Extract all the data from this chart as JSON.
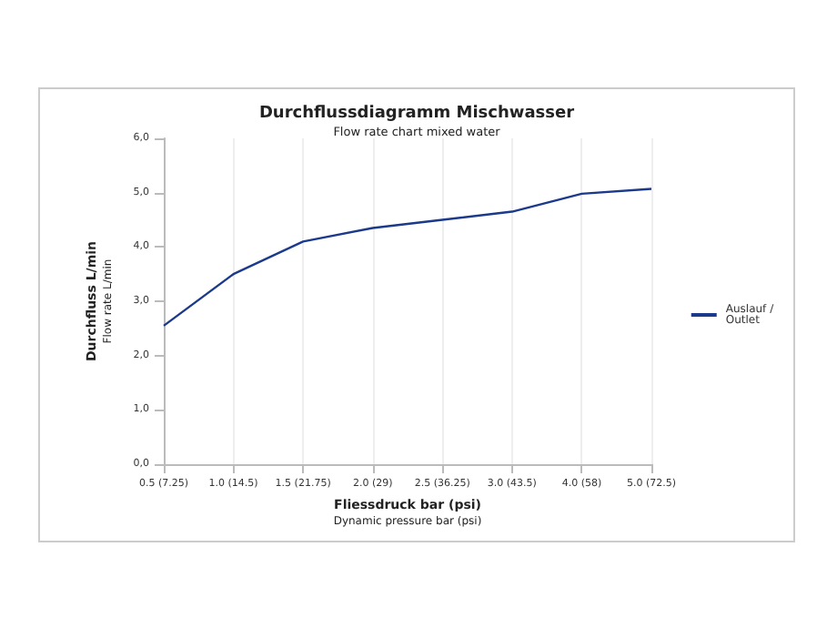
{
  "chart_data": {
    "type": "line",
    "title": "Durchflussdiagramm Mischwasser",
    "subtitle": "Flow rate chart mixed water",
    "xlabel": "Fliessdruck bar (psi)\nDynamic pressure bar (psi)",
    "ylabel": "Durchfluss L/min\nFlow rate L/min",
    "categories": [
      "0.5 (7.25)",
      "1.0 (14.5)",
      "1.5 (21.75)",
      "2.0 (29)",
      "2.5 (36.25)",
      "3.0 (43.5)",
      "4.0 (58)",
      "5.0 (72.5)"
    ],
    "series": [
      {
        "name": "Auslauf / Outlet",
        "color": "#1c3a8c",
        "values": [
          2.55,
          3.5,
          4.1,
          4.35,
          4.5,
          4.65,
          4.98,
          5.07
        ]
      }
    ],
    "ylim": [
      0,
      6
    ],
    "yticks": [
      {
        "value": 0,
        "label": "0,0"
      },
      {
        "value": 1,
        "label": "1,0"
      },
      {
        "value": 2,
        "label": "2,0"
      },
      {
        "value": 3,
        "label": "3,0"
      },
      {
        "value": 4,
        "label": "4,0"
      },
      {
        "value": 5,
        "label": "5,0"
      },
      {
        "value": 6,
        "label": "6,0"
      }
    ],
    "grid": "x",
    "legend": "right",
    "marker": "none",
    "line_style": "solid"
  }
}
